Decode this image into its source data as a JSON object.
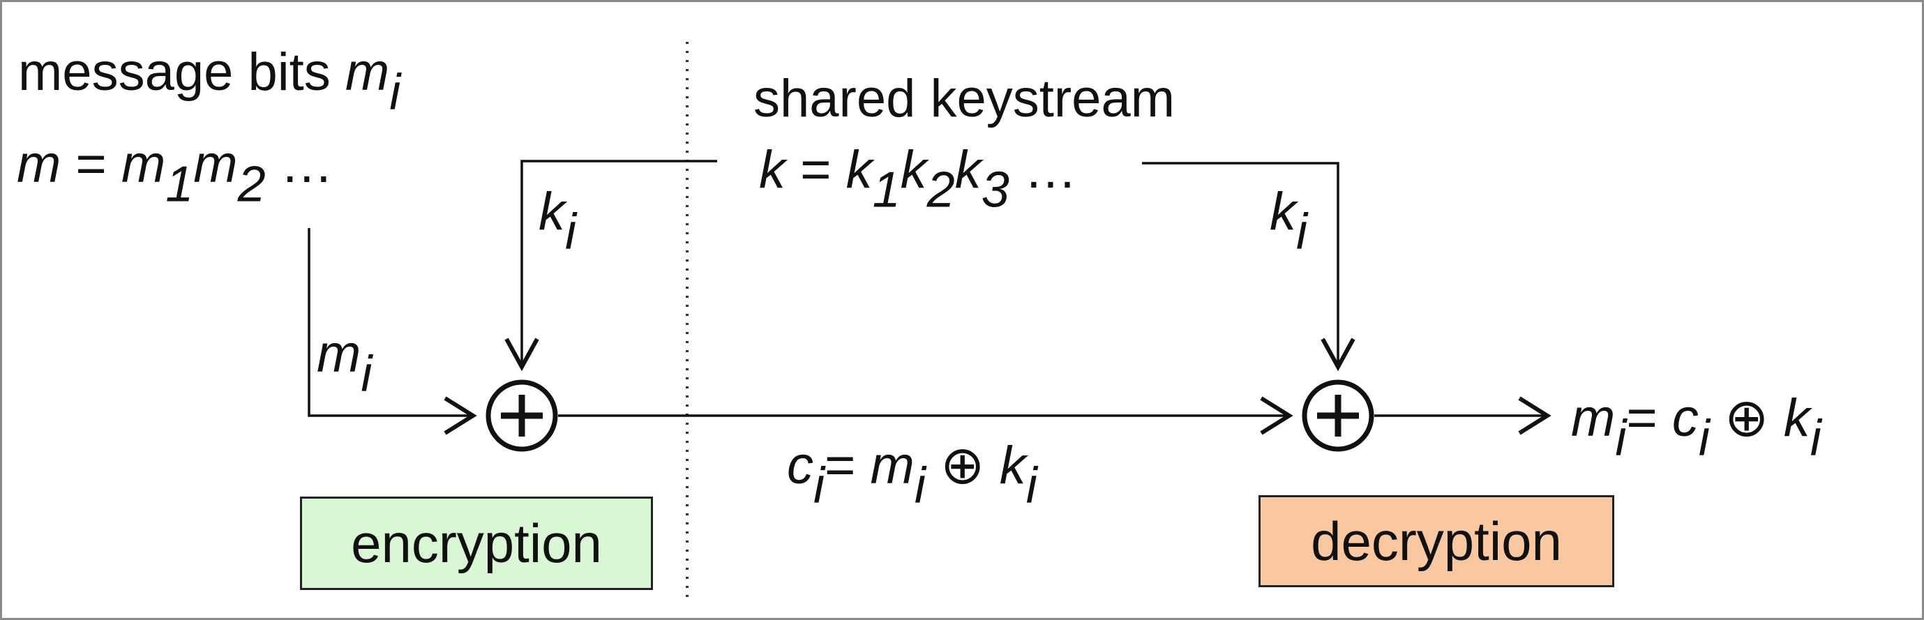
{
  "diagram": {
    "message_label": {
      "text": "message bits ",
      "var": "m",
      "sub": "i"
    },
    "message_expr": {
      "lhs": "m",
      "eq": " = ",
      "var": "m",
      "sub1": "1",
      "sub2": "2",
      "ellipsis": " …"
    },
    "keystream_label": "shared keystream",
    "keystream_expr": {
      "lhs": "k",
      "eq": " = ",
      "var": "k",
      "sub1": "1",
      "sub2": "2",
      "sub3": "3",
      "ellipsis": " …"
    },
    "key_input_left": {
      "var": "k",
      "sub": "i"
    },
    "key_input_right": {
      "var": "k",
      "sub": "i"
    },
    "message_input": {
      "var": "m",
      "sub": "i"
    },
    "ciphertext_expr": {
      "lhs": "c",
      "lhs_sub": "i",
      "eq": "= ",
      "m": "m",
      "m_sub": "i",
      "xor": " ⊕ ",
      "k": "k",
      "k_sub": "i"
    },
    "output_expr": {
      "lhs": "m",
      "lhs_sub": "i",
      "eq": "= ",
      "c": "c",
      "c_sub": "i",
      "xor": " ⊕",
      "k": "k",
      "k_sub": "i"
    },
    "encryption_box": {
      "label": "encryption",
      "color": "#d9f7d4"
    },
    "decryption_box": {
      "label": "decryption",
      "color": "#f9c8a0"
    },
    "xor_symbol": "xor-circle-plus"
  }
}
